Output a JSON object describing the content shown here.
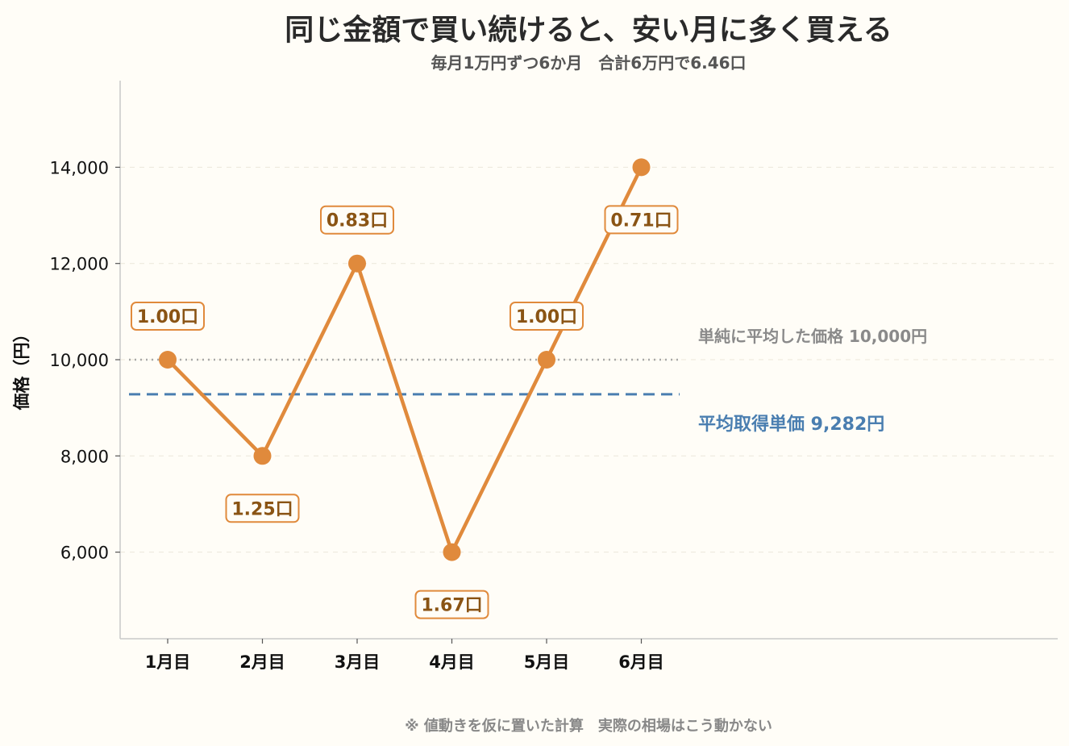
{
  "chart_data": {
    "type": "line",
    "title": "同じ金額で買い続けると、安い月に多く買える",
    "subtitle": "毎月1万円ずつ6か月　合計6万円で6.46口",
    "note": "※ 値動きを仮に置いた計算　実際の相場はこう動かない",
    "ylabel": "価格（円）",
    "categories": [
      "1月目",
      "2月目",
      "3月目",
      "4月目",
      "5月目",
      "6月目"
    ],
    "values": [
      10000,
      8000,
      12000,
      6000,
      10000,
      14000
    ],
    "point_labels": [
      "1.00口",
      "1.25口",
      "0.83口",
      "1.67口",
      "1.00口",
      "0.71口"
    ],
    "label_position": [
      "above",
      "below",
      "above",
      "below",
      "above",
      "below"
    ],
    "yticks": [
      6000,
      8000,
      10000,
      12000,
      14000
    ],
    "ytick_labels": [
      "6,000",
      "8,000",
      "10,000",
      "12,000",
      "14,000"
    ],
    "ylim": [
      4200,
      15800
    ],
    "reference_lines": [
      {
        "value": 10000,
        "label": "単純に平均した価格 10,000円",
        "style": "dotted",
        "color": "#a8a8a8",
        "text_color": "#8a8a8a"
      },
      {
        "value": 9282,
        "label": "平均取得単価 9,282円",
        "style": "dashed",
        "color": "#4a7eb0",
        "text_color": "#4a7eb0"
      }
    ],
    "line_color": "#e08a3c",
    "grid": "horizontal-dashed-faint",
    "legend": "none"
  }
}
